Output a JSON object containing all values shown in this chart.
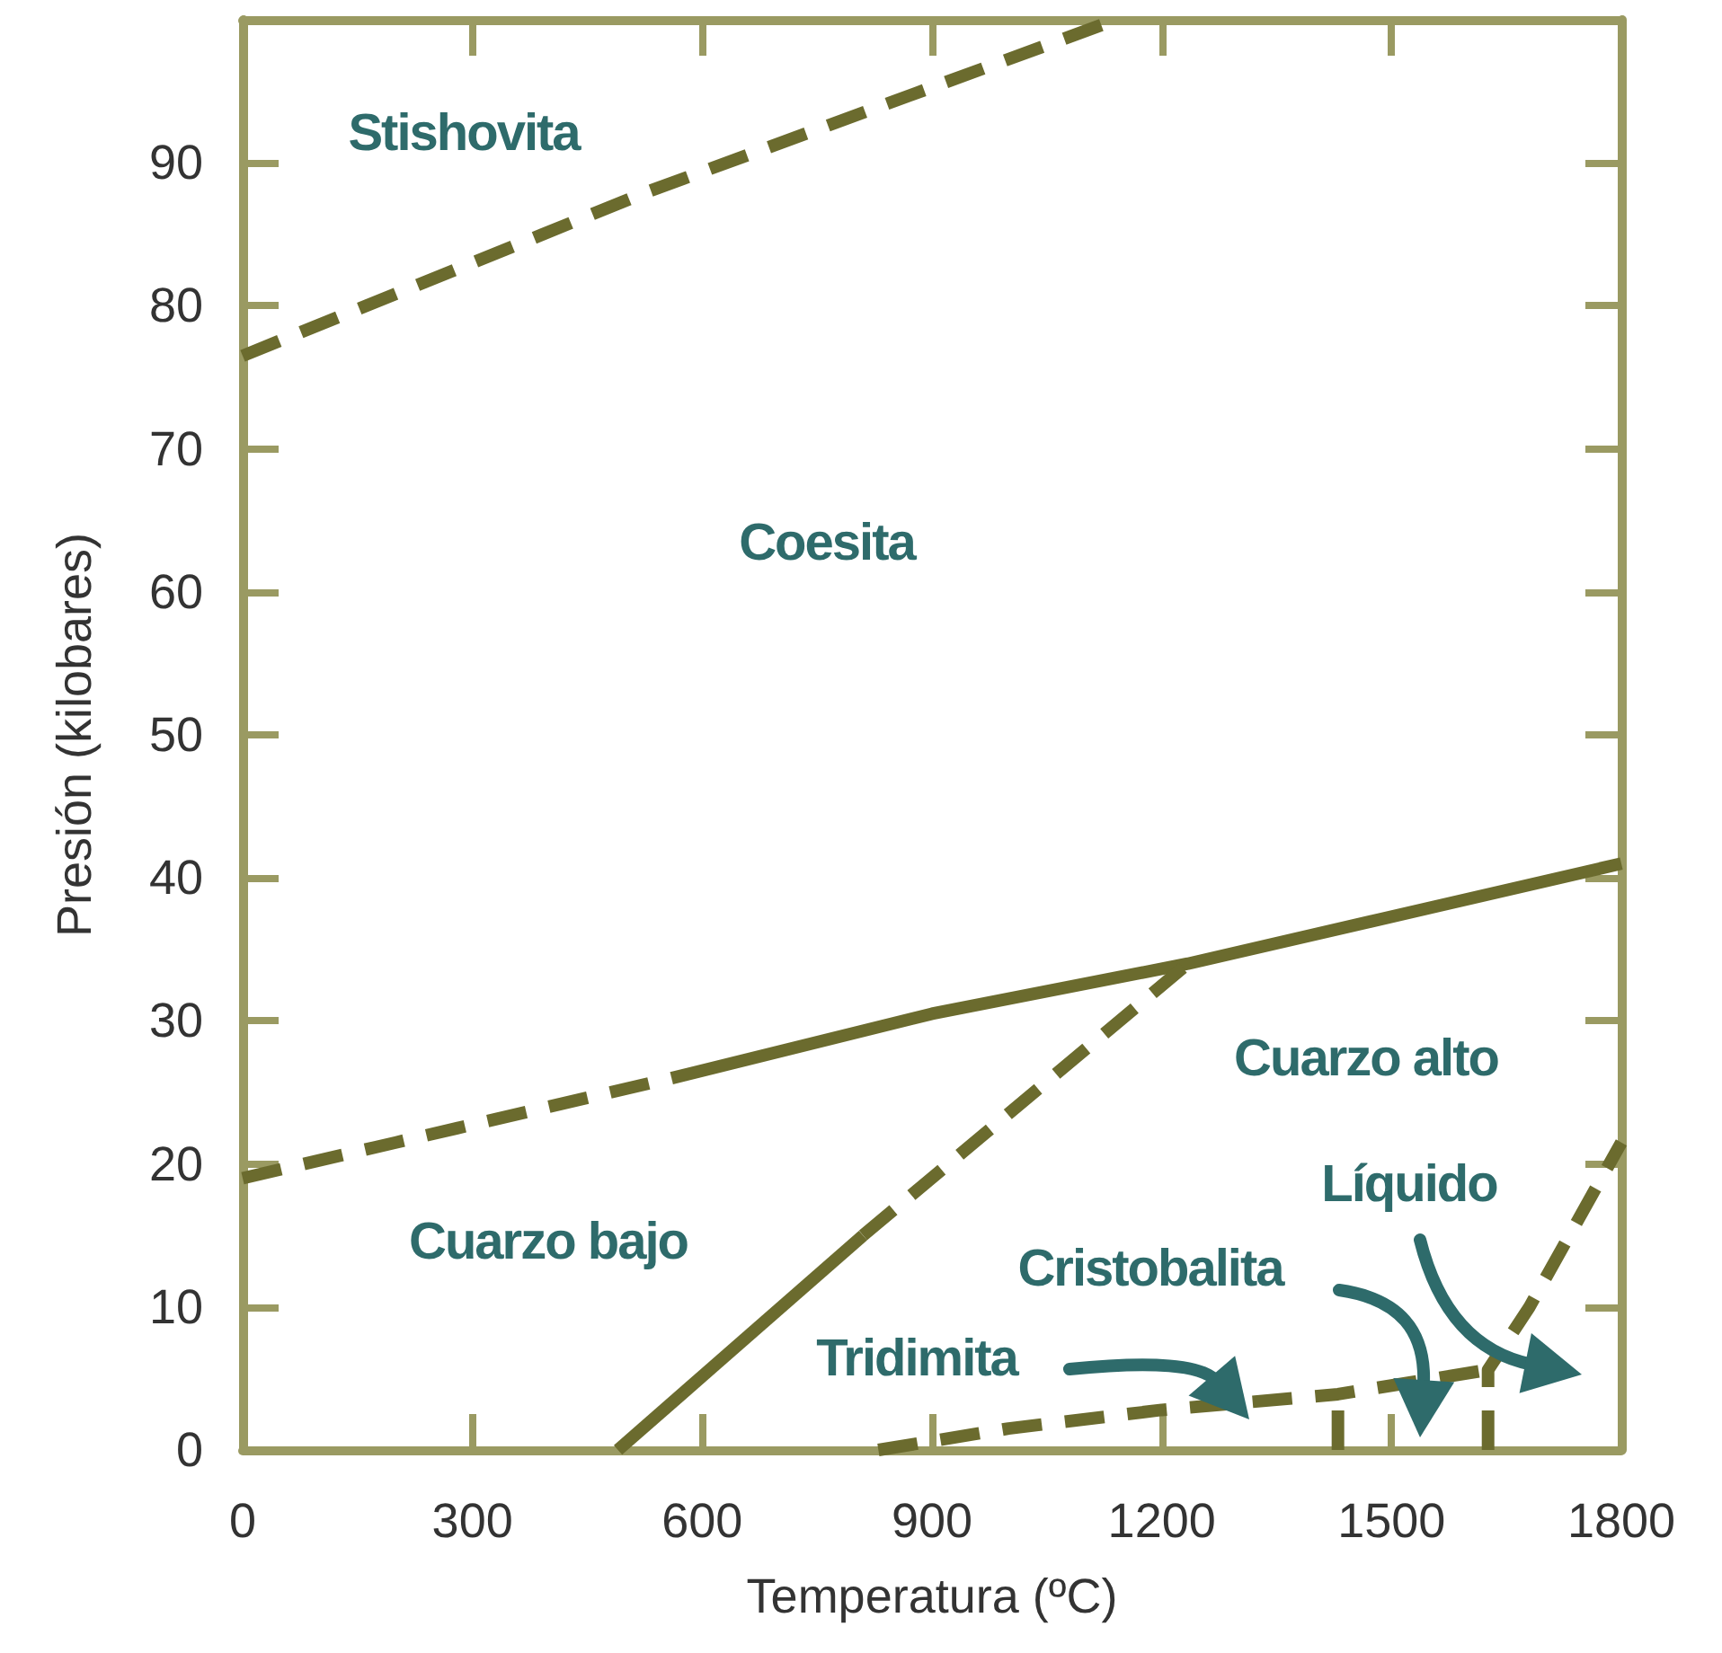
{
  "chart_data": {
    "type": "line",
    "xlabel": "Temperatura (ºC)",
    "ylabel": "Presión (kilobares)",
    "xlim": [
      0,
      1800
    ],
    "xticks": [
      0,
      300,
      600,
      900,
      1200,
      1500,
      1800
    ],
    "ylim": [
      0,
      100
    ],
    "yticks": [
      0,
      10,
      20,
      30,
      40,
      50,
      60,
      70,
      80,
      90
    ],
    "grid": false,
    "marker": "none",
    "series": [
      {
        "color": "#6b6b2e",
        "line_style": "dashed",
        "x": [
          0,
          530,
          1140
        ],
        "values": [
          76.5,
          88,
          100
        ]
      },
      {
        "color": "#6b6b2e",
        "line_style": "dashed",
        "x": [
          0,
          200,
          400,
          560
        ],
        "values": [
          19,
          21.5,
          24,
          26
        ]
      },
      {
        "color": "#6b6b2e",
        "line_style": "solid",
        "x": [
          560,
          900,
          1234,
          1800
        ],
        "values": [
          26,
          30.5,
          34,
          41
        ]
      },
      {
        "color": "#6b6b2e",
        "line_style": "solid",
        "x": [
          490,
          810
        ],
        "values": [
          0,
          15
        ]
      },
      {
        "color": "#6b6b2e",
        "line_style": "dashed",
        "x": [
          810,
          1234
        ],
        "values": [
          15,
          34
        ]
      },
      {
        "color": "#6b6b2e",
        "line_style": "dashed",
        "x": [
          830,
          1000,
          1200,
          1430,
          1626
        ],
        "values": [
          0,
          1.5,
          2.8,
          3.9,
          5.6
        ]
      },
      {
        "color": "#6b6b2e",
        "line_style": "dashed",
        "x": [
          1430,
          1430
        ],
        "values": [
          0,
          3.9
        ]
      },
      {
        "color": "#6b6b2e",
        "line_style": "dashed",
        "x": [
          1626,
          1626,
          1680,
          1800
        ],
        "values": [
          0,
          5.6,
          10,
          21.5
        ]
      }
    ],
    "annotations": [
      "Stishovita",
      "Coesita",
      "Cuarzo bajo",
      "Cuarzo alto",
      "Líquido",
      "Cristobalita",
      "Tridimita"
    ]
  }
}
